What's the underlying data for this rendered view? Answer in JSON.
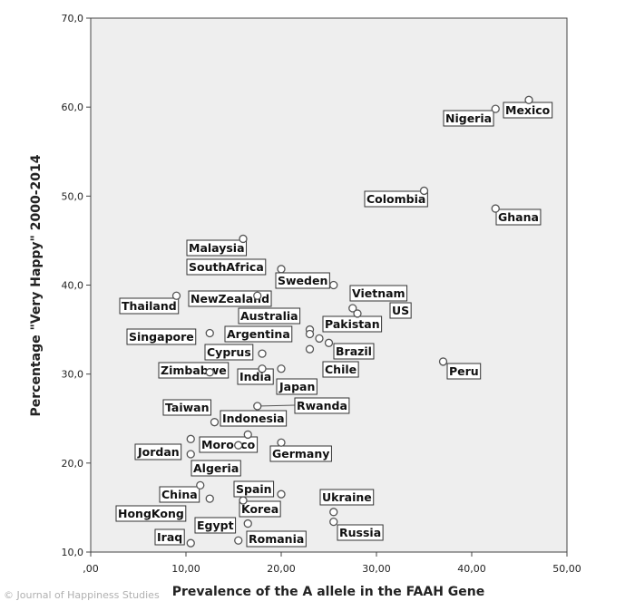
{
  "credit": "© Journal of Happiness Studies",
  "chart_data": {
    "type": "scatter",
    "title": "",
    "xlabel": "Prevalence of the A allele in the FAAH Gene",
    "ylabel": "Percentage \"Very Happy\" 2000-2014",
    "xlim": [
      0,
      50
    ],
    "ylim": [
      10,
      70
    ],
    "x_ticks": [
      ",00",
      "10,00",
      "20,00",
      "30,00",
      "40,00",
      "50,00"
    ],
    "y_ticks": [
      "10,0",
      "20,0",
      "30,0",
      "40,0",
      "50,0",
      "60,0",
      "70,0"
    ],
    "grid": false,
    "colors": {
      "plot_bg": "#eeeeee",
      "point_stroke": "#555555",
      "label_border": "#333333"
    },
    "points": [
      {
        "label": "Mexico",
        "x": 46.0,
        "y": 60.8
      },
      {
        "label": "Nigeria",
        "x": 42.5,
        "y": 59.8
      },
      {
        "label": "Colombia",
        "x": 35.0,
        "y": 50.6
      },
      {
        "label": "Ghana",
        "x": 42.5,
        "y": 48.6
      },
      {
        "label": "Peru",
        "x": 37.0,
        "y": 31.4
      },
      {
        "label": "Malaysia",
        "x": 16.0,
        "y": 45.2
      },
      {
        "label": "SouthAfrica",
        "x": 20.0,
        "y": 41.8
      },
      {
        "label": "Sweden",
        "x": 25.5,
        "y": 40.0
      },
      {
        "label": "Thailand",
        "x": 9.0,
        "y": 38.8
      },
      {
        "label": "NewZealand",
        "x": 17.5,
        "y": 38.8
      },
      {
        "label": "Vietnam",
        "x": 27.5,
        "y": 37.4
      },
      {
        "label": "US",
        "x": 28.0,
        "y": 36.8
      },
      {
        "label": "Australia",
        "x": 23.0,
        "y": 35.0
      },
      {
        "label": "Pakistan",
        "x": 23.0,
        "y": 34.5
      },
      {
        "label": "Singapore",
        "x": 12.5,
        "y": 34.6
      },
      {
        "label": "Argentina",
        "x": 24.0,
        "y": 34.0
      },
      {
        "label": "Brazil",
        "x": 25.0,
        "y": 33.5
      },
      {
        "label": "Cyprus",
        "x": 18.0,
        "y": 32.3
      },
      {
        "label": "Chile",
        "x": 23.0,
        "y": 32.8
      },
      {
        "label": "Zimbabwe",
        "x": 12.5,
        "y": 30.2
      },
      {
        "label": "India",
        "x": 18.0,
        "y": 30.6
      },
      {
        "label": "Japan",
        "x": 20.0,
        "y": 30.6
      },
      {
        "label": "Taiwan",
        "x": 13.0,
        "y": 24.6
      },
      {
        "label": "Rwanda",
        "x": 17.5,
        "y": 26.4
      },
      {
        "label": "Indonesia",
        "x": 16.5,
        "y": 23.2
      },
      {
        "label": "Morocco",
        "x": 10.5,
        "y": 22.7
      },
      {
        "label": "Jordan",
        "x": 10.5,
        "y": 21.0
      },
      {
        "label": "Germany",
        "x": 20.0,
        "y": 22.3
      },
      {
        "label": "Algeria",
        "x": 15.5,
        "y": 22.0
      },
      {
        "label": "China",
        "x": 11.5,
        "y": 17.5
      },
      {
        "label": "Spain",
        "x": 20.0,
        "y": 16.5
      },
      {
        "label": "Ukraine",
        "x": 25.5,
        "y": 14.5
      },
      {
        "label": "HongKong",
        "x": 12.5,
        "y": 16.0
      },
      {
        "label": "Korea",
        "x": 16.0,
        "y": 15.8
      },
      {
        "label": "Egypt",
        "x": 16.5,
        "y": 13.2
      },
      {
        "label": "Russia",
        "x": 25.5,
        "y": 13.4
      },
      {
        "label": "Iraq",
        "x": 10.5,
        "y": 11.0
      },
      {
        "label": "Romania",
        "x": 15.5,
        "y": 11.3
      }
    ]
  }
}
